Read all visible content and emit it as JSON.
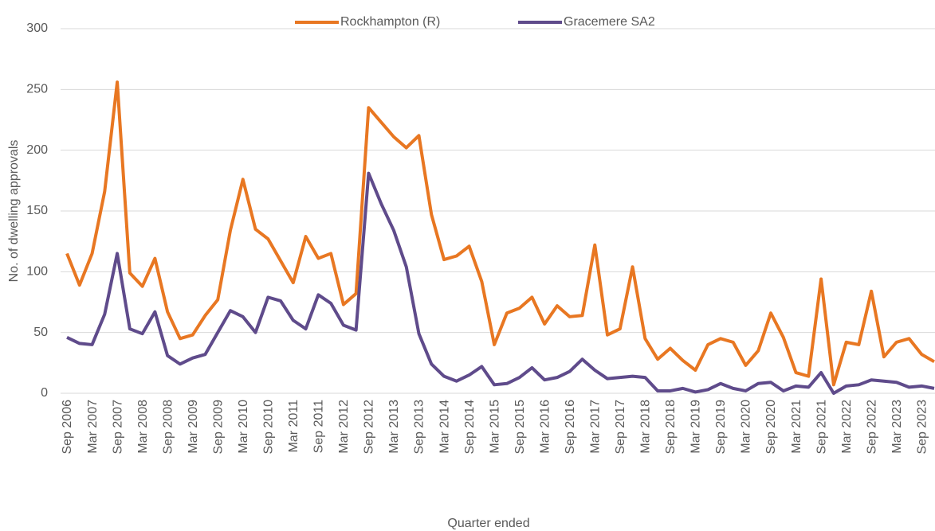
{
  "chart_data": {
    "type": "line",
    "y_label": "No. of dwelling approvals",
    "x_label": "Quarter ended",
    "categories": [
      "Sep 2006",
      null,
      "Mar 2007",
      null,
      "Sep 2007",
      null,
      "Mar 2008",
      null,
      "Sep 2008",
      null,
      "Mar 2009",
      null,
      "Sep 2009",
      null,
      "Mar 2010",
      null,
      "Sep 2010",
      null,
      "Mar 2011",
      null,
      "Sep 2011",
      null,
      "Mar 2012",
      null,
      "Sep 2012",
      null,
      "Mar 2013",
      null,
      "Sep 2013",
      null,
      "Mar 2014",
      null,
      "Sep 2014",
      null,
      "Mar 2015",
      null,
      "Sep 2015",
      null,
      "Mar 2016",
      null,
      "Sep 2016",
      null,
      "Mar 2017",
      null,
      "Sep 2017",
      null,
      "Mar 2018",
      null,
      "Sep 2018",
      null,
      "Mar 2019",
      null,
      "Sep 2019",
      null,
      "Mar 2020",
      null,
      "Sep 2020",
      null,
      "Mar 2021",
      null,
      "Sep 2021",
      null,
      "Mar 2022",
      null,
      "Sep 2022",
      null,
      "Mar 2023",
      null,
      "Sep 2023",
      null
    ],
    "series": [
      {
        "name": "Rockhampton (R)",
        "color": "#e87722",
        "values": [
          115,
          89,
          115,
          166,
          256,
          99,
          88,
          111,
          67,
          45,
          48,
          64,
          77,
          134,
          176,
          135,
          127,
          109,
          91,
          129,
          111,
          115,
          73,
          82,
          235,
          223,
          211,
          202,
          212,
          147,
          110,
          113,
          121,
          92,
          40,
          66,
          70,
          79,
          57,
          72,
          63,
          64,
          122,
          48,
          53,
          104,
          45,
          28,
          37,
          27,
          19,
          40,
          45,
          42,
          23,
          35,
          66,
          46,
          17,
          14,
          94,
          7,
          42,
          40,
          84,
          30,
          42,
          45,
          32,
          26
        ]
      },
      {
        "name": "Gracemere SA2",
        "color": "#5f4b8b",
        "values": [
          46,
          41,
          40,
          65,
          115,
          53,
          49,
          67,
          31,
          24,
          29,
          32,
          50,
          68,
          63,
          50,
          79,
          76,
          60,
          53,
          81,
          74,
          56,
          52,
          181,
          156,
          134,
          104,
          49,
          24,
          14,
          10,
          15,
          22,
          7,
          8,
          13,
          21,
          11,
          13,
          18,
          28,
          19,
          12,
          13,
          14,
          13,
          2,
          2,
          4,
          1,
          3,
          8,
          4,
          2,
          8,
          9,
          2,
          6,
          5,
          17,
          0,
          6,
          7,
          11,
          10,
          9,
          5,
          6,
          4
        ]
      }
    ],
    "ylim": [
      0,
      300
    ],
    "yticks": [
      0,
      50,
      100,
      150,
      200,
      250,
      300
    ],
    "grid": true,
    "legend": "top"
  }
}
